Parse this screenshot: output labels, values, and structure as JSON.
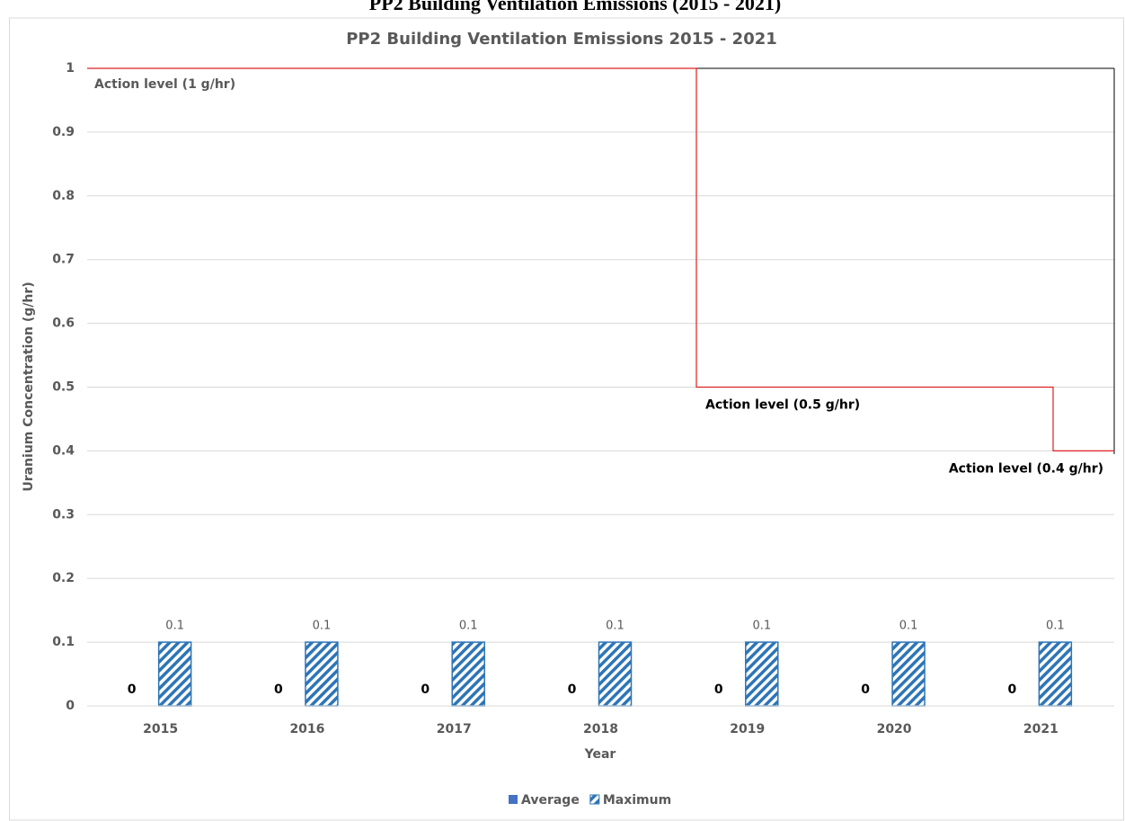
{
  "caption": "PP2 Building Ventilation Emissions (2015 - 2021)",
  "chart_data": {
    "type": "bar",
    "title": "PP2 Building Ventilation Emissions 2015 - 2021",
    "x_label": "Year",
    "y_label": "Uranium Concentration (g/hr)",
    "categories": [
      "2015",
      "2016",
      "2017",
      "2018",
      "2019",
      "2020",
      "2021"
    ],
    "series": [
      {
        "name": "Average",
        "color": "#4472c4",
        "hatch": false,
        "values": [
          0,
          0,
          0,
          0,
          0,
          0,
          0
        ]
      },
      {
        "name": "Maximum",
        "color": "#2e75b6",
        "hatch": true,
        "values": [
          0.1,
          0.1,
          0.1,
          0.1,
          0.1,
          0.1,
          0.1
        ]
      }
    ],
    "ylim": [
      0,
      1
    ],
    "yticks": [
      0,
      0.1,
      0.2,
      0.3,
      0.4,
      0.5,
      0.6,
      0.7,
      0.8,
      0.9,
      1
    ],
    "grid": true,
    "legend": "bottom",
    "annotations": [
      {
        "text": "Action level (1 g/hr)",
        "value": 1
      },
      {
        "text": "Action level (0.5 g/hr)",
        "value": 0.5
      },
      {
        "text": "Action level (0.4 g/hr)",
        "value": 0.4
      }
    ],
    "action_line_color": "#e02020"
  }
}
